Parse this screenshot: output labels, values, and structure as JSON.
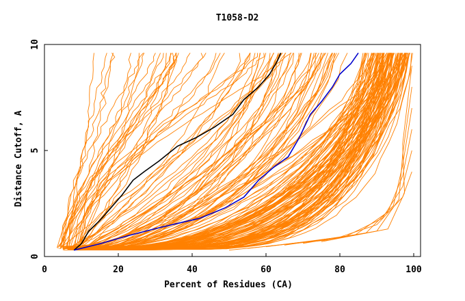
{
  "chart_data": {
    "type": "line",
    "title": "T1058-D2",
    "xlabel": "Percent of Residues (CA)",
    "ylabel": "Distance Cutoff, A",
    "xlim": [
      0,
      100
    ],
    "ylim": [
      0,
      10
    ],
    "x_ticks": [
      "0",
      "20",
      "40",
      "60",
      "80",
      "100"
    ],
    "y_ticks": [
      "0",
      "5",
      "10"
    ],
    "grid": false,
    "legend": "none",
    "colors": {
      "background_models": "#ff8000",
      "highlight_black": "#000000",
      "highlight_blue": "#0000cc",
      "axes": "#000000"
    },
    "background_series_count": 180,
    "series": [
      {
        "color": "#000000",
        "points": [
          [
            8,
            0.3
          ],
          [
            10,
            0.6
          ],
          [
            12,
            1.2
          ],
          [
            15,
            1.7
          ],
          [
            18,
            2.3
          ],
          [
            21,
            2.9
          ],
          [
            24,
            3.6
          ],
          [
            27,
            4.0
          ],
          [
            31,
            4.5
          ],
          [
            36,
            5.2
          ],
          [
            41,
            5.6
          ],
          [
            46,
            6.1
          ],
          [
            51,
            6.7
          ],
          [
            54,
            7.4
          ],
          [
            58,
            8.0
          ],
          [
            61,
            8.6
          ],
          [
            63,
            9.2
          ],
          [
            64,
            9.6
          ]
        ]
      },
      {
        "color": "#0000cc",
        "points": [
          [
            8,
            0.3
          ],
          [
            15,
            0.6
          ],
          [
            23,
            1.0
          ],
          [
            32,
            1.4
          ],
          [
            42,
            1.8
          ],
          [
            49,
            2.3
          ],
          [
            54,
            2.8
          ],
          [
            58,
            3.6
          ],
          [
            62,
            4.2
          ],
          [
            66,
            4.7
          ],
          [
            69,
            5.6
          ],
          [
            72,
            6.7
          ],
          [
            75,
            7.3
          ],
          [
            78,
            8.0
          ],
          [
            80,
            8.6
          ],
          [
            83,
            9.1
          ],
          [
            85,
            9.6
          ]
        ]
      }
    ]
  }
}
